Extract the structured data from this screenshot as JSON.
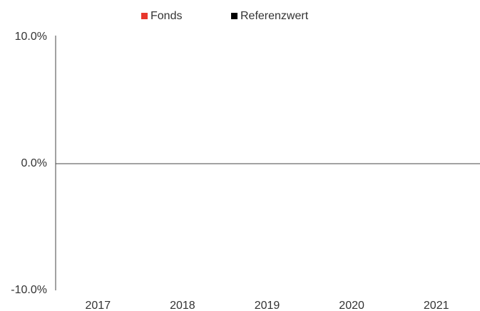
{
  "chart_data": {
    "type": "bar",
    "categories": [
      "2017",
      "2018",
      "2019",
      "2020",
      "2021"
    ],
    "series": [
      {
        "name": "Fonds",
        "color": "#e8372c",
        "values": [
          null,
          null,
          null,
          null,
          null
        ]
      },
      {
        "name": "Referenzwert",
        "color": "#000000",
        "values": [
          null,
          null,
          null,
          null,
          null
        ]
      }
    ],
    "ylim": [
      -10,
      10
    ],
    "yticks": [
      {
        "value": -10,
        "label": "-10.0%"
      },
      {
        "value": 0,
        "label": "0.0%"
      },
      {
        "value": 10,
        "label": "10.0%"
      }
    ],
    "legend": "top"
  }
}
